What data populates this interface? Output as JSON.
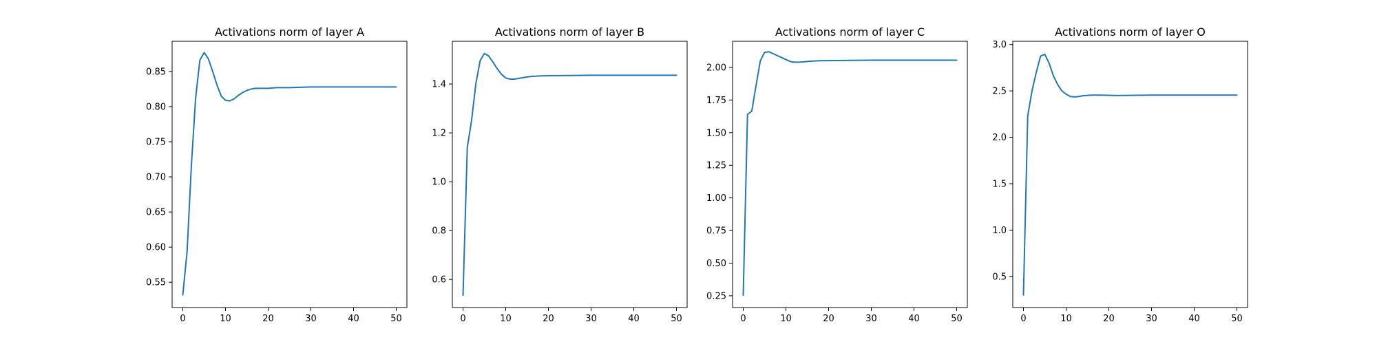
{
  "chart_data": [
    {
      "type": "line",
      "title": "Activations norm of layer A",
      "xlabel": "",
      "ylabel": "",
      "xlim": [
        -2.5,
        52.5
      ],
      "ylim": [
        0.514,
        0.893
      ],
      "xticks": [
        0,
        10,
        20,
        30,
        40,
        50
      ],
      "yticks": [
        0.55,
        0.6,
        0.65,
        0.7,
        0.75,
        0.8,
        0.85
      ],
      "ytick_labels": [
        "0.55",
        "0.60",
        "0.65",
        "0.70",
        "0.75",
        "0.80",
        "0.85"
      ],
      "grid": false,
      "series": [
        {
          "color": "#1f77b4",
          "x": [
            0,
            1,
            2,
            3,
            4,
            5,
            6,
            7,
            8,
            9,
            10,
            11,
            12,
            13,
            14,
            15,
            16,
            17,
            18,
            20,
            22,
            25,
            30,
            35,
            40,
            45,
            50
          ],
          "y": [
            0.532,
            0.593,
            0.715,
            0.812,
            0.866,
            0.877,
            0.868,
            0.85,
            0.831,
            0.815,
            0.809,
            0.808,
            0.811,
            0.816,
            0.82,
            0.823,
            0.825,
            0.826,
            0.826,
            0.826,
            0.827,
            0.827,
            0.828,
            0.828,
            0.828,
            0.828,
            0.828
          ]
        }
      ]
    },
    {
      "type": "line",
      "title": "Activations norm of layer B",
      "xlabel": "",
      "ylabel": "",
      "xlim": [
        -2.5,
        52.5
      ],
      "ylim": [
        0.485,
        1.575
      ],
      "xticks": [
        0,
        10,
        20,
        30,
        40,
        50
      ],
      "yticks": [
        0.6,
        0.8,
        1.0,
        1.2,
        1.4
      ],
      "ytick_labels": [
        "0.6",
        "0.8",
        "1.0",
        "1.2",
        "1.4"
      ],
      "grid": false,
      "series": [
        {
          "color": "#1f77b4",
          "x": [
            0,
            1,
            2,
            3,
            4,
            5,
            6,
            7,
            8,
            9,
            10,
            11,
            12,
            13,
            14,
            15,
            16,
            18,
            20,
            25,
            30,
            35,
            40,
            45,
            50
          ],
          "y": [
            0.535,
            1.14,
            1.25,
            1.4,
            1.495,
            1.525,
            1.515,
            1.49,
            1.463,
            1.44,
            1.425,
            1.42,
            1.42,
            1.423,
            1.426,
            1.429,
            1.431,
            1.433,
            1.434,
            1.435,
            1.436,
            1.436,
            1.436,
            1.436,
            1.436
          ]
        }
      ]
    },
    {
      "type": "line",
      "title": "Activations norm of layer C",
      "xlabel": "",
      "ylabel": "",
      "xlim": [
        -2.5,
        52.5
      ],
      "ylim": [
        0.16,
        2.2
      ],
      "xticks": [
        0,
        10,
        20,
        30,
        40,
        50
      ],
      "yticks": [
        0.25,
        0.5,
        0.75,
        1.0,
        1.25,
        1.5,
        1.75,
        2.0
      ],
      "ytick_labels": [
        "0.25",
        "0.50",
        "0.75",
        "1.00",
        "1.25",
        "1.50",
        "1.75",
        "2.00"
      ],
      "grid": false,
      "series": [
        {
          "color": "#1f77b4",
          "x": [
            0,
            1,
            2,
            3,
            4,
            5,
            6,
            7,
            8,
            9,
            10,
            11,
            12,
            13,
            14,
            15,
            16,
            18,
            20,
            25,
            30,
            35,
            40,
            45,
            50
          ],
          "y": [
            0.255,
            1.64,
            1.665,
            1.86,
            2.05,
            2.115,
            2.12,
            2.105,
            2.09,
            2.075,
            2.06,
            2.045,
            2.04,
            2.04,
            2.042,
            2.045,
            2.048,
            2.051,
            2.052,
            2.054,
            2.055,
            2.055,
            2.055,
            2.055,
            2.055
          ]
        }
      ]
    },
    {
      "type": "line",
      "title": "Activations norm of layer O",
      "xlabel": "",
      "ylabel": "",
      "xlim": [
        -2.5,
        52.5
      ],
      "ylim": [
        0.165,
        3.035
      ],
      "xticks": [
        0,
        10,
        20,
        30,
        40,
        50
      ],
      "yticks": [
        0.5,
        1.0,
        1.5,
        2.0,
        2.5,
        3.0
      ],
      "ytick_labels": [
        "0.5",
        "1.0",
        "1.5",
        "2.0",
        "2.5",
        "3.0"
      ],
      "grid": false,
      "series": [
        {
          "color": "#1f77b4",
          "x": [
            0,
            1,
            2,
            3,
            4,
            5,
            6,
            7,
            8,
            9,
            10,
            11,
            12,
            13,
            14,
            15,
            16,
            18,
            20,
            22,
            25,
            30,
            35,
            40,
            45,
            50
          ],
          "y": [
            0.3,
            2.23,
            2.5,
            2.7,
            2.875,
            2.895,
            2.8,
            2.665,
            2.57,
            2.5,
            2.465,
            2.44,
            2.435,
            2.44,
            2.448,
            2.452,
            2.455,
            2.455,
            2.453,
            2.45,
            2.452,
            2.455,
            2.455,
            2.455,
            2.455,
            2.455
          ]
        }
      ]
    }
  ]
}
